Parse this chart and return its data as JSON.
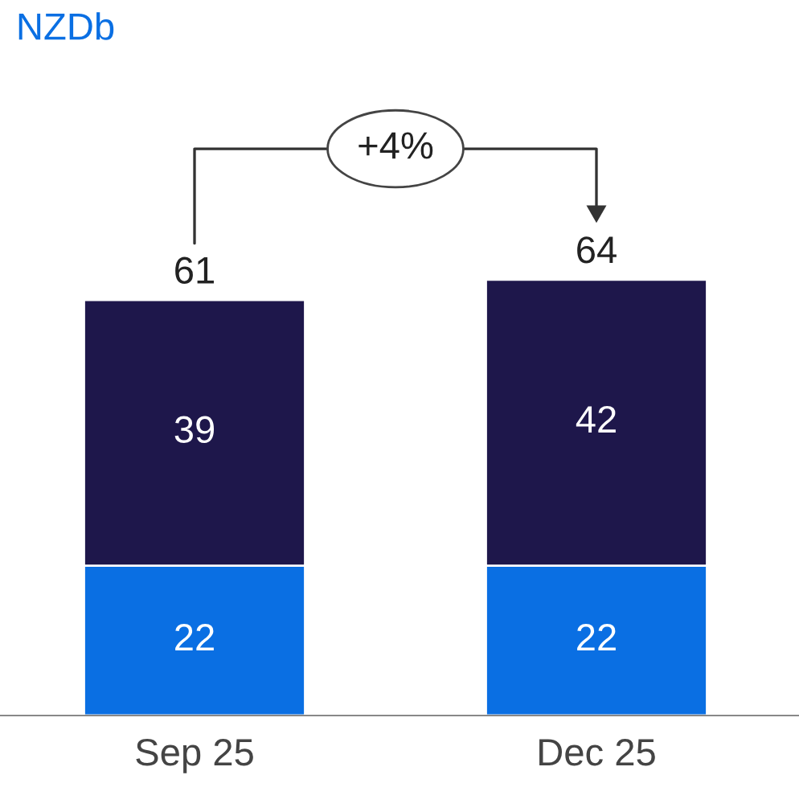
{
  "chart_data": {
    "type": "bar",
    "title": "NZDb",
    "categories": [
      "Sep 25",
      "Dec 25"
    ],
    "stacked": true,
    "series": [
      {
        "color": "#0a6fe3",
        "values": [
          22,
          22
        ]
      },
      {
        "color": "#1e174b",
        "values": [
          39,
          42
        ]
      }
    ],
    "data_labels": true,
    "totals": [
      "61",
      "64"
    ],
    "annotations": [
      "+4%"
    ],
    "grid": false,
    "legend": false
  }
}
